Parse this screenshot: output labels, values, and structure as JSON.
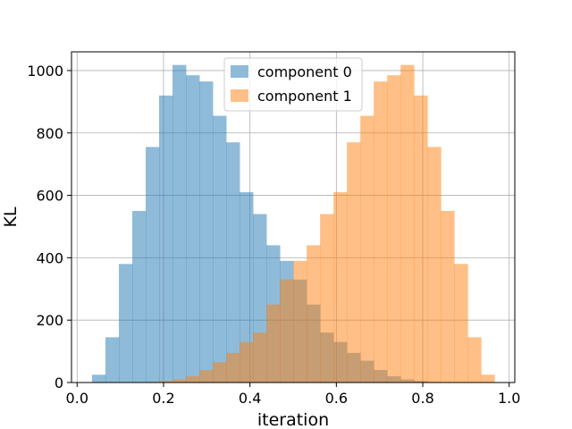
{
  "chart_data": {
    "type": "bar",
    "xlabel": "iteration",
    "ylabel": "KL",
    "xlim": [
      -0.013,
      1.013
    ],
    "ylim": [
      0,
      1060
    ],
    "xticks": [
      0.0,
      0.2,
      0.4,
      0.6,
      0.8,
      1.0
    ],
    "xtick_labels": [
      "0.0",
      "0.2",
      "0.4",
      "0.6",
      "0.8",
      "1.0"
    ],
    "yticks": [
      0,
      200,
      400,
      600,
      800,
      1000
    ],
    "ytick_labels": [
      "0",
      "200",
      "400",
      "600",
      "800",
      "1000"
    ],
    "grid": true,
    "legend_position": "upper center",
    "series": [
      {
        "name": "component 0",
        "color": "#1f77b4",
        "opacity": 0.5,
        "bin_start": 0.0345,
        "bin_width": 0.03105,
        "counts": [
          25,
          145,
          380,
          550,
          755,
          920,
          1018,
          985,
          965,
          855,
          770,
          610,
          540,
          440,
          390,
          330,
          250,
          160,
          130,
          95,
          70,
          40,
          20,
          10,
          5,
          2,
          1,
          0,
          0,
          0
        ]
      },
      {
        "name": "component 1",
        "color": "#ff7f0e",
        "opacity": 0.5,
        "bin_start": 0.0345,
        "bin_width": 0.03105,
        "counts": [
          0,
          0,
          0,
          1,
          2,
          5,
          10,
          20,
          40,
          65,
          95,
          130,
          160,
          250,
          330,
          390,
          440,
          540,
          610,
          770,
          855,
          965,
          985,
          1018,
          920,
          755,
          550,
          380,
          145,
          25
        ]
      }
    ]
  }
}
